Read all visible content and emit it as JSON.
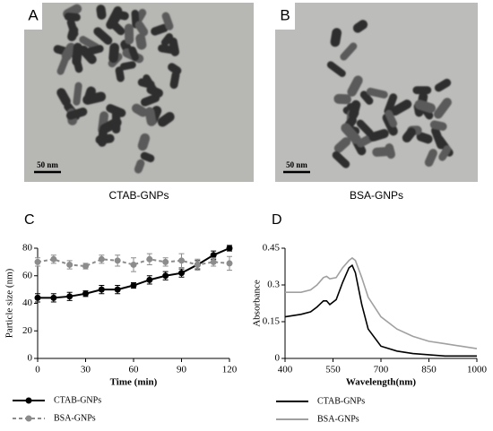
{
  "panels": [
    {
      "label": "A",
      "scale_bar": "50 nm",
      "caption": "CTAB-GNPs"
    },
    {
      "label": "B",
      "scale_bar": "50 nm",
      "caption": "BSA-GNPs"
    }
  ],
  "chart_data": [
    {
      "type": "line",
      "panel_label": "C",
      "xlabel": "Time (min)",
      "ylabel": "Particle size (nm)",
      "x": [
        0,
        10,
        20,
        30,
        40,
        50,
        60,
        70,
        80,
        90,
        100,
        110,
        120
      ],
      "xlim": [
        0,
        120
      ],
      "xticks": [
        0,
        30,
        60,
        90,
        120
      ],
      "ylim": [
        0,
        80
      ],
      "yticks": [
        0,
        20,
        40,
        60,
        80
      ],
      "legend": "below",
      "series": [
        {
          "name": "CTAB-GNPs",
          "color": "#000000",
          "marker": "circle",
          "dashed": false,
          "values": [
            44,
            44,
            45,
            47,
            50,
            50,
            53,
            57,
            60,
            62,
            68,
            75,
            80
          ],
          "errors": [
            3,
            3,
            3,
            2,
            3,
            3,
            2,
            3,
            3,
            3,
            3,
            3,
            2
          ]
        },
        {
          "name": "BSA-GNPs",
          "color": "#8c8c8c",
          "marker": "circle",
          "dashed": true,
          "values": [
            70,
            72,
            68,
            67,
            72,
            71,
            68,
            72,
            70,
            71,
            68,
            70,
            69
          ],
          "errors": [
            3,
            3,
            3,
            2,
            3,
            4,
            5,
            4,
            3,
            5,
            4,
            3,
            5
          ]
        }
      ]
    },
    {
      "type": "line",
      "panel_label": "D",
      "xlabel": "Wavelength(nm)",
      "ylabel": "Absorbance",
      "x": [
        400,
        450,
        480,
        500,
        520,
        530,
        540,
        560,
        580,
        600,
        610,
        620,
        640,
        660,
        700,
        750,
        800,
        850,
        900,
        950,
        1000
      ],
      "xlim": [
        400,
        1000
      ],
      "xticks": [
        400,
        550,
        700,
        850,
        1000
      ],
      "ylim": [
        0,
        0.45
      ],
      "yticks": [
        0,
        0.15,
        0.3,
        0.45
      ],
      "legend": "below",
      "series": [
        {
          "name": "CTAB-GNPs",
          "color": "#000000",
          "marker": "none",
          "dashed": false,
          "values": [
            0.17,
            0.18,
            0.19,
            0.21,
            0.235,
            0.235,
            0.22,
            0.24,
            0.31,
            0.37,
            0.38,
            0.35,
            0.22,
            0.12,
            0.05,
            0.03,
            0.02,
            0.015,
            0.01,
            0.01,
            0.01
          ]
        },
        {
          "name": "BSA-GNPs",
          "color": "#a0a0a0",
          "marker": "none",
          "dashed": false,
          "values": [
            0.27,
            0.27,
            0.28,
            0.3,
            0.33,
            0.335,
            0.325,
            0.33,
            0.37,
            0.4,
            0.41,
            0.4,
            0.33,
            0.25,
            0.17,
            0.12,
            0.09,
            0.07,
            0.06,
            0.05,
            0.04
          ]
        }
      ]
    }
  ]
}
